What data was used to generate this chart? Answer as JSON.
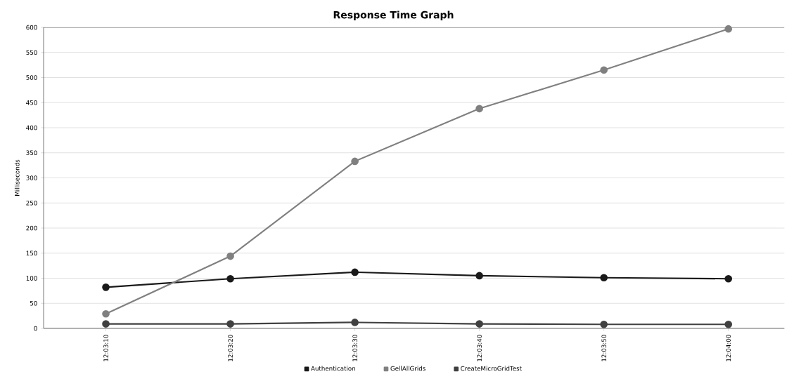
{
  "chart_data": {
    "type": "line",
    "title": "Response Time Graph",
    "ylabel": "Milliseconds",
    "categories": [
      "12:03:10",
      "12:03:20",
      "12:03:30",
      "12:03:40",
      "12:03:50",
      "12:04:00"
    ],
    "series": [
      {
        "name": "Authentication",
        "color": "#1a1a1a",
        "values": [
          82,
          99,
          112,
          105,
          101,
          99
        ]
      },
      {
        "name": "GellAllGrids",
        "color": "#808080",
        "values": [
          29,
          144,
          333,
          438,
          515,
          597
        ]
      },
      {
        "name": "CreateMicroGridTest",
        "color": "#404040",
        "values": [
          9,
          9,
          12,
          9,
          8,
          8
        ]
      }
    ],
    "ylim": [
      0,
      600
    ],
    "yticks": [
      0,
      50,
      100,
      150,
      200,
      250,
      300,
      350,
      400,
      450,
      500,
      550,
      600
    ],
    "grid": "y",
    "legend": "bottom",
    "marker": "circle",
    "line_style": "solid"
  }
}
